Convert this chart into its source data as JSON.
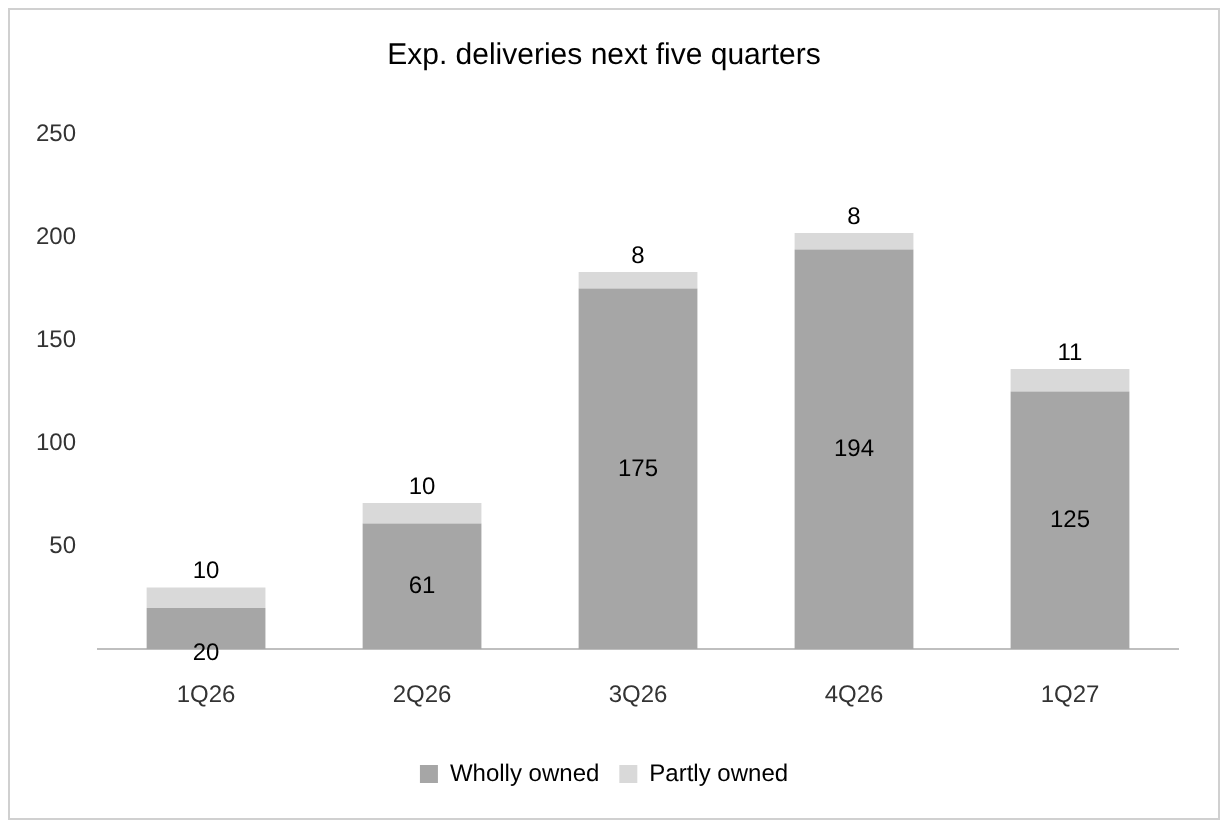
{
  "chart_data": {
    "type": "bar",
    "title": "Exp. deliveries next five quarters",
    "categories": [
      "1Q26",
      "2Q26",
      "3Q26",
      "4Q26",
      "1Q27"
    ],
    "series": [
      {
        "name": "Wholly owned",
        "color": "#a6a6a6",
        "values": [
          20,
          61,
          175,
          194,
          125
        ]
      },
      {
        "name": "Partly owned",
        "color": "#d9d9d9",
        "values": [
          10,
          10,
          8,
          8,
          11
        ]
      }
    ],
    "stacked": true,
    "ylim": [
      0,
      250
    ],
    "yticks": [
      50,
      100,
      150,
      200,
      250
    ],
    "grid": false,
    "legend": "bottom",
    "data_labels": true
  }
}
